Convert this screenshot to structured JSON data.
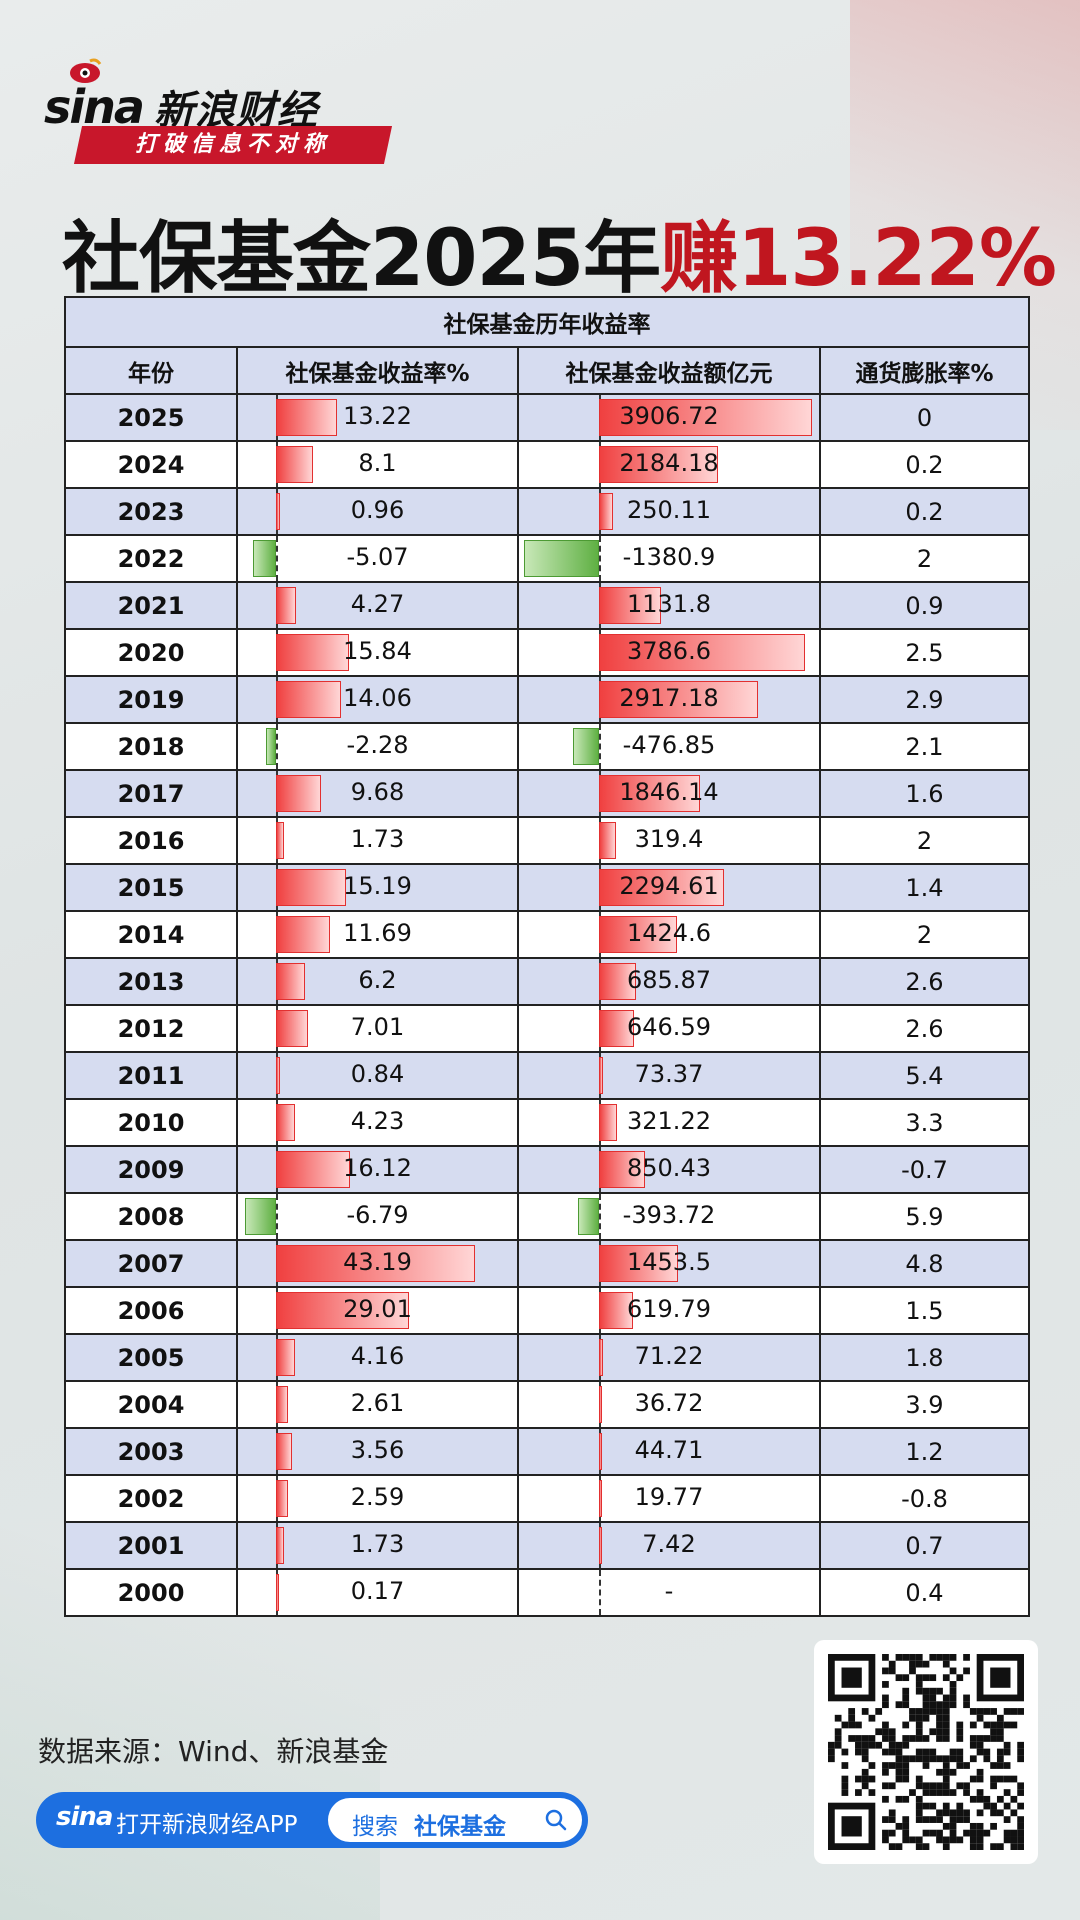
{
  "brand": {
    "logo_mark": "sina",
    "logo_name": "新浪财经",
    "slogan": "打破信息不对称",
    "brand_red": "#c8172b"
  },
  "headline": {
    "part1": "社保基金2025年",
    "part2": "赚13.22%",
    "accent_color": "#c0161f"
  },
  "table": {
    "title": "社保基金历年收益率",
    "headers": [
      "年份",
      "社保基金收益率%",
      "社保基金收益额亿元",
      "通货膨胀率%"
    ],
    "rows": [
      {
        "year": "2025",
        "rate": "13.22",
        "amount": "3906.72",
        "inflation": "0"
      },
      {
        "year": "2024",
        "rate": "8.1",
        "amount": "2184.18",
        "inflation": "0.2"
      },
      {
        "year": "2023",
        "rate": "0.96",
        "amount": "250.11",
        "inflation": "0.2"
      },
      {
        "year": "2022",
        "rate": "-5.07",
        "amount": "-1380.9",
        "inflation": "2"
      },
      {
        "year": "2021",
        "rate": "4.27",
        "amount": "1131.8",
        "inflation": "0.9"
      },
      {
        "year": "2020",
        "rate": "15.84",
        "amount": "3786.6",
        "inflation": "2.5"
      },
      {
        "year": "2019",
        "rate": "14.06",
        "amount": "2917.18",
        "inflation": "2.9"
      },
      {
        "year": "2018",
        "rate": "-2.28",
        "amount": "-476.85",
        "inflation": "2.1"
      },
      {
        "year": "2017",
        "rate": "9.68",
        "amount": "1846.14",
        "inflation": "1.6"
      },
      {
        "year": "2016",
        "rate": "1.73",
        "amount": "319.4",
        "inflation": "2"
      },
      {
        "year": "2015",
        "rate": "15.19",
        "amount": "2294.61",
        "inflation": "1.4"
      },
      {
        "year": "2014",
        "rate": "11.69",
        "amount": "1424.6",
        "inflation": "2"
      },
      {
        "year": "2013",
        "rate": "6.2",
        "amount": "685.87",
        "inflation": "2.6"
      },
      {
        "year": "2012",
        "rate": "7.01",
        "amount": "646.59",
        "inflation": "2.6"
      },
      {
        "year": "2011",
        "rate": "0.84",
        "amount": "73.37",
        "inflation": "5.4"
      },
      {
        "year": "2010",
        "rate": "4.23",
        "amount": "321.22",
        "inflation": "3.3"
      },
      {
        "year": "2009",
        "rate": "16.12",
        "amount": "850.43",
        "inflation": "-0.7"
      },
      {
        "year": "2008",
        "rate": "-6.79",
        "amount": "-393.72",
        "inflation": "5.9"
      },
      {
        "year": "2007",
        "rate": "43.19",
        "amount": "1453.5",
        "inflation": "4.8"
      },
      {
        "year": "2006",
        "rate": "29.01",
        "amount": "619.79",
        "inflation": "1.5"
      },
      {
        "year": "2005",
        "rate": "4.16",
        "amount": "71.22",
        "inflation": "1.8"
      },
      {
        "year": "2004",
        "rate": "2.61",
        "amount": "36.72",
        "inflation": "3.9"
      },
      {
        "year": "2003",
        "rate": "3.56",
        "amount": "44.71",
        "inflation": "1.2"
      },
      {
        "year": "2002",
        "rate": "2.59",
        "amount": "19.77",
        "inflation": "-0.8"
      },
      {
        "year": "2001",
        "rate": "1.73",
        "amount": "7.42",
        "inflation": "0.7"
      },
      {
        "year": "2000",
        "rate": "0.17",
        "amount": "-",
        "inflation": "0.4"
      }
    ],
    "colors": {
      "row_band": "#d6dcf0",
      "positive_bar": "#f04040",
      "negative_bar": "#5fb043"
    }
  },
  "footer": {
    "source": "数据来源：Wind、新浪基金",
    "app_logo": "sina",
    "app_label": "打开新浪财经APP",
    "search_prefix": "搜索",
    "search_keyword": "社保基金",
    "app_bar_color": "#1d6fe0"
  },
  "icons": [
    "sina-eye-logo-icon",
    "search-icon",
    "qr-code-icon"
  ]
}
